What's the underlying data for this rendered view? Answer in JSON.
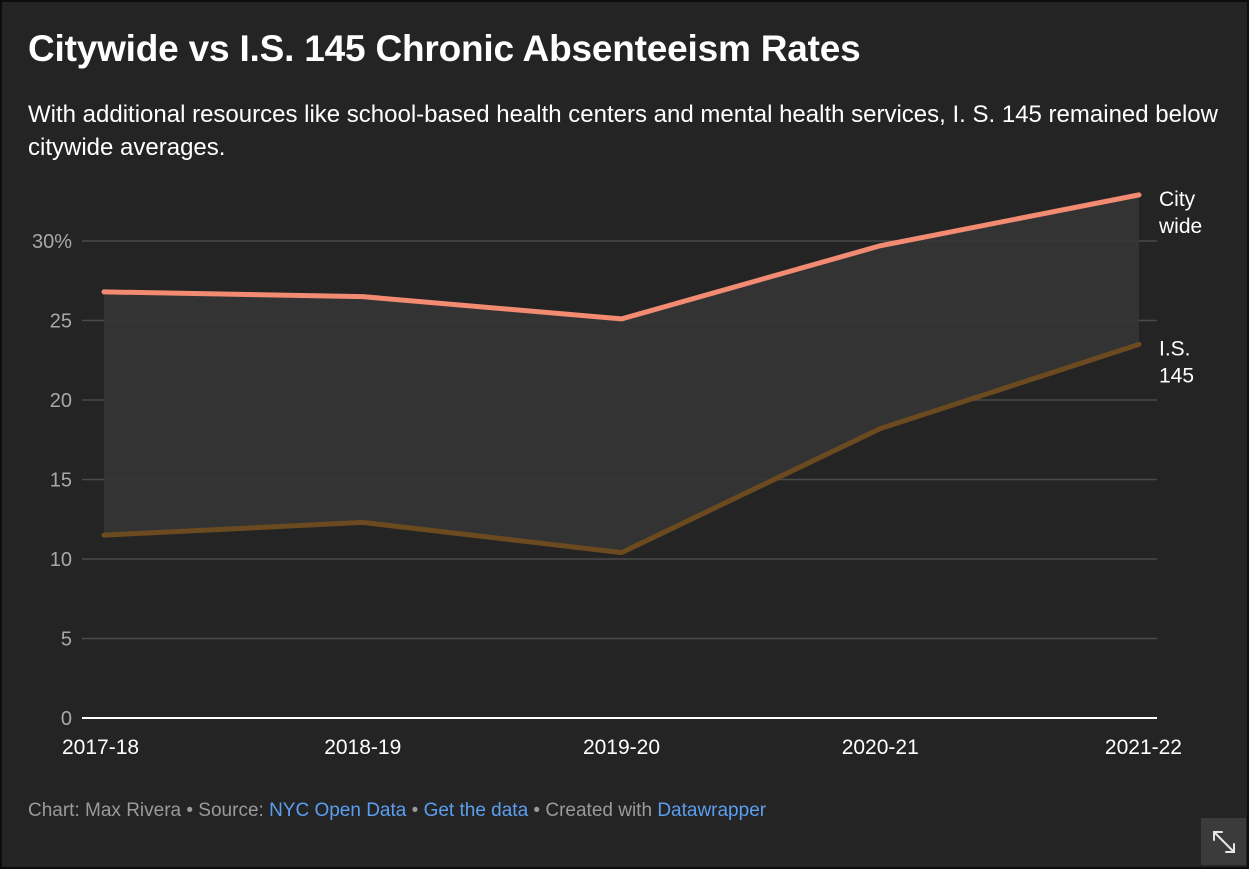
{
  "header": {
    "title": "Citywide vs I.S. 145 Chronic Absenteeism Rates",
    "subtitle": "With additional resources like school-based health centers and mental health services, I. S. 145 remained below citywide averages."
  },
  "chart_data": {
    "type": "line",
    "categories": [
      "2017-18",
      "2018-19",
      "2019-20",
      "2020-21",
      "2021-22"
    ],
    "series": [
      {
        "name": "City wide",
        "label_lines": [
          "City",
          "wide"
        ],
        "color": "#f28b72",
        "values": [
          26.8,
          26.5,
          25.1,
          29.7,
          32.9
        ]
      },
      {
        "name": "I.S. 145",
        "label_lines": [
          "I.S.",
          "145"
        ],
        "color": "#6b4a1f",
        "values": [
          11.5,
          12.3,
          10.4,
          18.2,
          23.5
        ]
      }
    ],
    "yticks": [
      "0",
      "5",
      "10",
      "15",
      "20",
      "25",
      "30%"
    ],
    "ylim": [
      0,
      30
    ],
    "area_between_series": true,
    "area_color": "#353535",
    "grid": true
  },
  "footer": {
    "prefix": "Chart: Max Rivera • Source: ",
    "source_link": "NYC Open Data",
    "sep1": " • ",
    "data_link": "Get the data",
    "sep2": " • Created with ",
    "tool_link": "Datawrapper"
  },
  "icons": {
    "expand": "expand-diagonal-icon"
  }
}
